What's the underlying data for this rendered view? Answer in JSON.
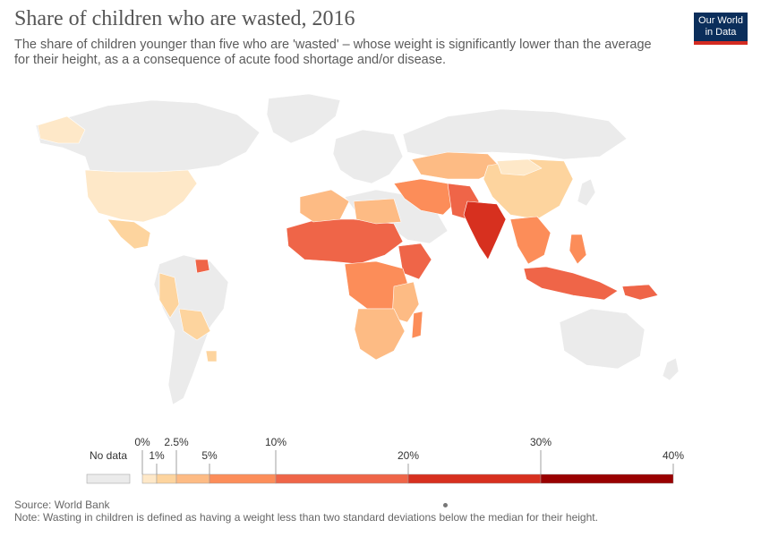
{
  "header": {
    "title": "Share of children who are wasted, 2016",
    "subtitle": "The share of children younger than five who are 'wasted' – whose weight is significantly lower than the average for their height, as a a consequence of acute food shortage and/or disease.",
    "logo_line1": "Our World",
    "logo_line2": "in Data"
  },
  "legend": {
    "no_data_label": "No data",
    "ticks": [
      "0%",
      "1%",
      "2.5%",
      "5%",
      "10%",
      "20%",
      "30%",
      "40%"
    ],
    "colors": {
      "no_data": "#ebebeb",
      "bin_0_1": "#fee8c8",
      "bin_1_2_5": "#fdd49e",
      "bin_2_5_5": "#fdbb84",
      "bin_5_10": "#fc8d59",
      "bin_10_20": "#ef6548",
      "bin_20_30": "#d7301f",
      "bin_30_40": "#990000"
    }
  },
  "footer": {
    "source": "Source: World Bank",
    "note": "Note: Wasting in children is defined as having a weight less than two standard deviations below the median for their height."
  }
}
